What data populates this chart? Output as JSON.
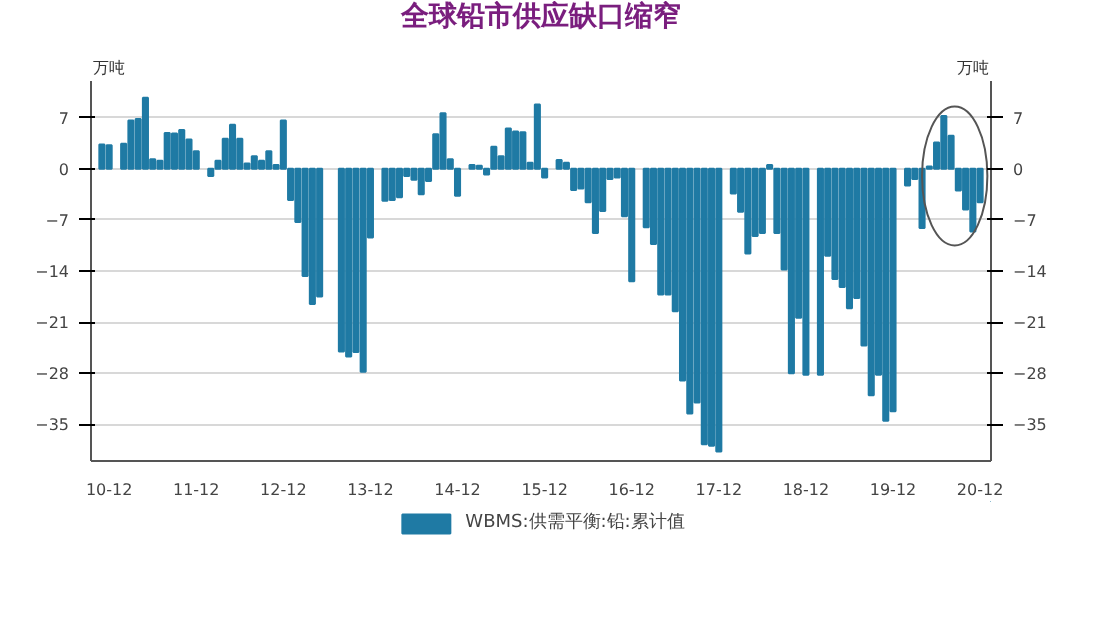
{
  "chart_data": {
    "type": "bar",
    "title": "全球铅市供应缺口缩窄",
    "ylabel": "万吨",
    "y2label": "万吨",
    "categories": [
      null,
      "10-12",
      null,
      null,
      null,
      null,
      null,
      null,
      null,
      null,
      null,
      null,
      null,
      "11-12",
      null,
      null,
      null,
      null,
      null,
      null,
      null,
      null,
      null,
      null,
      null,
      "12-12",
      null,
      null,
      null,
      null,
      null,
      null,
      null,
      null,
      null,
      null,
      null,
      "13-12",
      null,
      null,
      null,
      null,
      null,
      null,
      null,
      null,
      null,
      null,
      null,
      "14-12",
      null,
      null,
      null,
      null,
      null,
      null,
      null,
      null,
      null,
      null,
      null,
      "15-12",
      null,
      null,
      null,
      null,
      null,
      null,
      null,
      null,
      null,
      null,
      null,
      "16-12",
      null,
      null,
      null,
      null,
      null,
      null,
      null,
      null,
      null,
      null,
      null,
      "17-12",
      null,
      null,
      null,
      null,
      null,
      null,
      null,
      null,
      null,
      null,
      null,
      "18-12",
      null,
      null,
      null,
      null,
      null,
      null,
      null,
      null,
      null,
      null,
      null,
      "19-12",
      null,
      null,
      null,
      null,
      null,
      null,
      null,
      null,
      null,
      null,
      null,
      "20-12"
    ],
    "series": [
      {
        "name": "WBMS:供需平衡:铅:累计值",
        "color": "#1f7aa4",
        "values": [
          3.3,
          3.2,
          null,
          3.4,
          6.6,
          6.8,
          9.7,
          1.3,
          1.1,
          4.9,
          4.8,
          5.3,
          4.0,
          2.4,
          null,
          -1.0,
          1.1,
          4.1,
          6.0,
          4.1,
          0.7,
          1.7,
          1.1,
          2.4,
          0.5,
          6.6,
          -4.3,
          -7.3,
          -14.7,
          -18.5,
          -17.5,
          null,
          null,
          -25.0,
          -25.7,
          -25.1,
          -27.8,
          -9.4,
          null,
          -4.4,
          -4.3,
          -3.9,
          -1.0,
          -1.5,
          -3.5,
          -1.7,
          4.7,
          7.6,
          1.3,
          -3.7,
          null,
          0.5,
          0.4,
          -0.8,
          3.0,
          1.7,
          5.5,
          5.1,
          5.0,
          0.8,
          8.8,
          -1.2,
          null,
          1.2,
          0.8,
          -2.9,
          -2.7,
          -4.6,
          -8.8,
          -5.8,
          -1.4,
          -1.2,
          -6.5,
          -15.4,
          null,
          -8.0,
          -10.3,
          -17.2,
          -17.2,
          -19.5,
          -29.0,
          -33.5,
          -32.0,
          -37.7,
          -37.9,
          -38.7,
          null,
          -3.4,
          -5.9,
          -11.6,
          -9.2,
          -8.8,
          0.5,
          -8.8,
          -13.8,
          -28.0,
          -20.4,
          -28.2,
          null,
          -28.2,
          -11.9,
          -15.1,
          -16.2,
          -19.1,
          -17.7,
          -24.2,
          -31.0,
          -28.2,
          -34.5,
          -33.2,
          null,
          -2.3,
          -1.4,
          -8.1,
          0.3,
          3.6,
          7.2,
          4.5,
          -3.0,
          -5.6,
          -8.6,
          -4.6
        ]
      }
    ],
    "ylim": [
      -40,
      12
    ],
    "yticks": [
      -35,
      -28,
      -21,
      -14,
      -7,
      0,
      7
    ],
    "y2lim": [
      -40,
      12
    ],
    "y2ticks": [
      -35,
      -28,
      -21,
      -14,
      -7,
      0,
      7
    ],
    "grid": "y",
    "legend": "bottom"
  }
}
